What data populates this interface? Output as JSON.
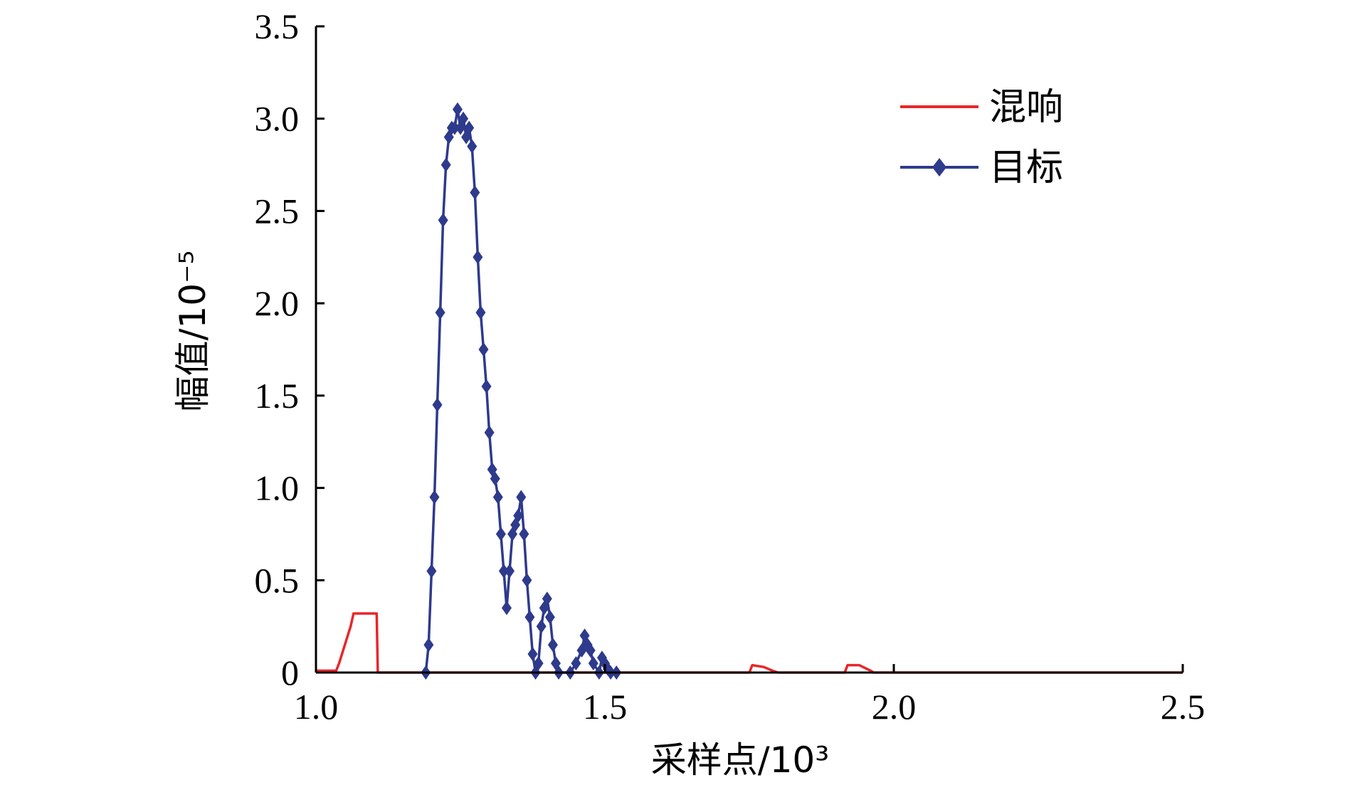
{
  "chart_data": {
    "type": "line",
    "xlabel": "采样点/10³",
    "ylabel": "幅值/10⁻⁵",
    "xlim": [
      1.0,
      2.5
    ],
    "ylim": [
      0,
      3.5
    ],
    "x_ticks": [
      "1.0",
      "1.5",
      "2.0",
      "2.5"
    ],
    "y_ticks": [
      "0",
      "0.5",
      "1.0",
      "1.5",
      "2.0",
      "2.5",
      "3.0",
      "3.5"
    ],
    "grid": false,
    "legend": "top-right",
    "series": [
      {
        "name": "混响",
        "color": "#e8262a",
        "marker": "none",
        "points": [
          [
            1.0,
            0.01
          ],
          [
            1.035,
            0.01
          ],
          [
            1.04,
            0.05
          ],
          [
            1.06,
            0.25
          ],
          [
            1.065,
            0.32
          ],
          [
            1.105,
            0.32
          ],
          [
            1.107,
            0.0
          ],
          [
            1.18,
            0.0
          ],
          [
            1.52,
            0.0
          ],
          [
            1.75,
            0.0
          ],
          [
            1.755,
            0.04
          ],
          [
            1.775,
            0.03
          ],
          [
            1.79,
            0.01
          ],
          [
            1.8,
            0.0
          ],
          [
            1.915,
            0.0
          ],
          [
            1.92,
            0.04
          ],
          [
            1.94,
            0.04
          ],
          [
            1.96,
            0.01
          ],
          [
            1.965,
            0.0
          ],
          [
            2.5,
            0.0
          ]
        ]
      },
      {
        "name": "目标",
        "color": "#2e3a8c",
        "marker": "diamond",
        "points": [
          [
            1.19,
            0.0
          ],
          [
            1.195,
            0.15
          ],
          [
            1.2,
            0.55
          ],
          [
            1.205,
            0.95
          ],
          [
            1.21,
            1.45
          ],
          [
            1.215,
            1.95
          ],
          [
            1.22,
            2.45
          ],
          [
            1.225,
            2.75
          ],
          [
            1.23,
            2.9
          ],
          [
            1.235,
            2.95
          ],
          [
            1.24,
            2.95
          ],
          [
            1.245,
            3.05
          ],
          [
            1.25,
            2.95
          ],
          [
            1.255,
            3.0
          ],
          [
            1.26,
            2.9
          ],
          [
            1.265,
            2.95
          ],
          [
            1.27,
            2.85
          ],
          [
            1.275,
            2.6
          ],
          [
            1.28,
            2.25
          ],
          [
            1.285,
            1.95
          ],
          [
            1.29,
            1.75
          ],
          [
            1.295,
            1.55
          ],
          [
            1.3,
            1.3
          ],
          [
            1.305,
            1.1
          ],
          [
            1.31,
            1.05
          ],
          [
            1.315,
            0.95
          ],
          [
            1.32,
            0.75
          ],
          [
            1.325,
            0.55
          ],
          [
            1.33,
            0.35
          ],
          [
            1.335,
            0.55
          ],
          [
            1.34,
            0.75
          ],
          [
            1.345,
            0.8
          ],
          [
            1.35,
            0.85
          ],
          [
            1.355,
            0.95
          ],
          [
            1.36,
            0.75
          ],
          [
            1.365,
            0.5
          ],
          [
            1.37,
            0.3
          ],
          [
            1.375,
            0.1
          ],
          [
            1.38,
            0.0
          ],
          [
            1.385,
            0.05
          ],
          [
            1.39,
            0.25
          ],
          [
            1.395,
            0.35
          ],
          [
            1.4,
            0.4
          ],
          [
            1.405,
            0.3
          ],
          [
            1.41,
            0.15
          ],
          [
            1.415,
            0.05
          ],
          [
            1.42,
            0.0
          ],
          [
            1.44,
            0.0
          ],
          [
            1.45,
            0.05
          ],
          [
            1.46,
            0.12
          ],
          [
            1.465,
            0.2
          ],
          [
            1.47,
            0.15
          ],
          [
            1.475,
            0.12
          ],
          [
            1.48,
            0.05
          ],
          [
            1.49,
            0.0
          ],
          [
            1.495,
            0.08
          ],
          [
            1.5,
            0.05
          ],
          [
            1.505,
            0.02
          ],
          [
            1.51,
            0.0
          ],
          [
            1.52,
            0.0
          ]
        ]
      }
    ]
  }
}
